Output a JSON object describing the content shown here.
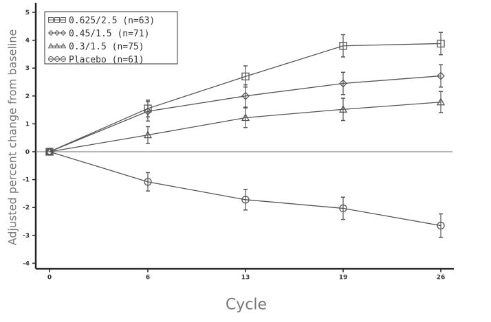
{
  "chart_data": {
    "type": "line",
    "title": "",
    "xlabel": "Cycle",
    "ylabel": "Adjusted percent change from baseline",
    "categories": [
      "0",
      "6",
      "13",
      "19",
      "26"
    ],
    "ylim": [
      -4,
      5
    ],
    "yticks": [
      "5",
      "4",
      "3",
      "2",
      "1",
      "0",
      "-1",
      "-2",
      "-3",
      "-4"
    ],
    "grid": false,
    "reference_line_y": 0,
    "legend_position": "top-left",
    "series": [
      {
        "name": "0.625/2.5 (n=63)",
        "marker": "square",
        "values": [
          0,
          1.55,
          2.7,
          3.8,
          3.88
        ],
        "errors": [
          0,
          0.3,
          0.38,
          0.4,
          0.4
        ]
      },
      {
        "name": "0.45/1.5 (n=71)",
        "marker": "diamond",
        "values": [
          0,
          1.45,
          2.0,
          2.45,
          2.72
        ],
        "errors": [
          0,
          0.35,
          0.4,
          0.4,
          0.4
        ]
      },
      {
        "name": "0.3/1.5 (n=75)",
        "marker": "triangle",
        "values": [
          0,
          0.6,
          1.22,
          1.52,
          1.78
        ],
        "errors": [
          0,
          0.3,
          0.35,
          0.4,
          0.38
        ]
      },
      {
        "name": "Placebo (n=61)",
        "marker": "circle",
        "values": [
          0,
          -1.08,
          -1.72,
          -2.03,
          -2.65
        ],
        "errors": [
          0,
          0.33,
          0.37,
          0.4,
          0.42
        ]
      }
    ],
    "colors": {
      "line": "#555555",
      "axis": "#222222"
    }
  }
}
